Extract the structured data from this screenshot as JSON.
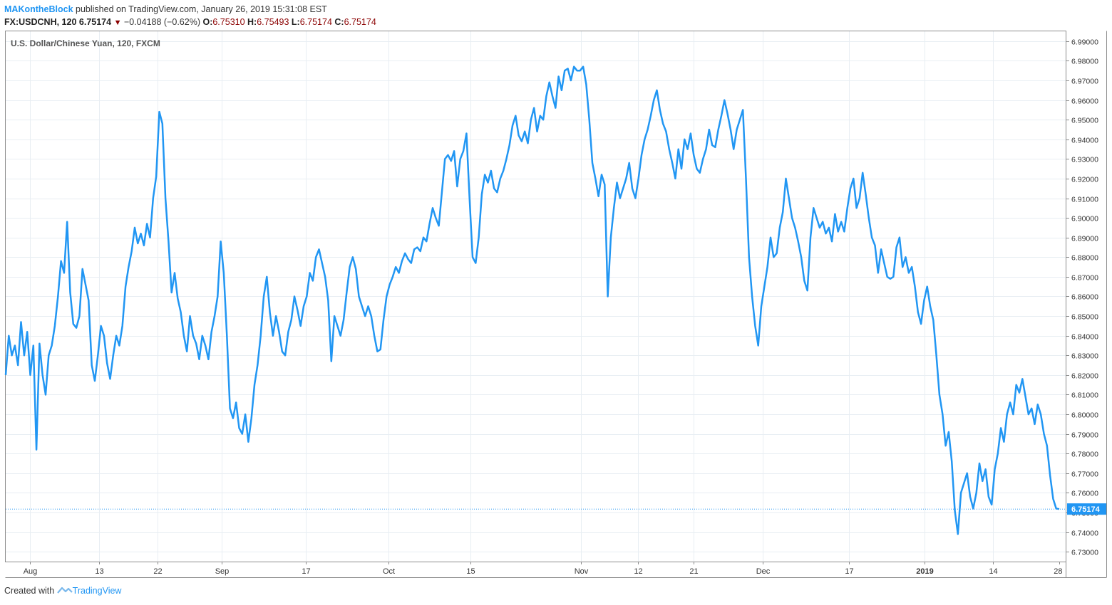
{
  "header": {
    "author": "MAKontheBlock",
    "published_text": "published on TradingView.com, January 26, 2019 15:31:08 EST",
    "symbol_interval": "FX:USDCNH, 120",
    "last": "6.75174",
    "change": "−0.04188 (−0.62%)",
    "o_label": "O:",
    "o_value": "6.75310",
    "h_label": "H:",
    "h_value": "6.75493",
    "l_label": "L:",
    "l_value": "6.75174",
    "c_label": "C:",
    "c_value": "6.75174"
  },
  "footer": {
    "created_with": "Created with",
    "brand": "TradingView"
  },
  "colors": {
    "line": "#2196f3",
    "grid": "#e8eef3",
    "down": "#8b0000"
  },
  "chart_data": {
    "type": "line",
    "title": "U.S. Dollar/Chinese Yuan, 120, FXCM",
    "ylim": [
      6.725,
      6.995
    ],
    "y_ticks": [
      "6.73000",
      "6.74000",
      "6.75000",
      "6.76000",
      "6.77000",
      "6.78000",
      "6.79000",
      "6.80000",
      "6.81000",
      "6.82000",
      "6.83000",
      "6.84000",
      "6.85000",
      "6.86000",
      "6.87000",
      "6.88000",
      "6.89000",
      "6.90000",
      "6.91000",
      "6.92000",
      "6.93000",
      "6.94000",
      "6.95000",
      "6.96000",
      "6.97000",
      "6.98000",
      "6.99000"
    ],
    "x_ticks": [
      {
        "label": "Aug",
        "pos": 0.0227
      },
      {
        "label": "13",
        "pos": 0.0887
      },
      {
        "label": "22",
        "pos": 0.1442
      },
      {
        "label": "Sep",
        "pos": 0.2052
      },
      {
        "label": "17",
        "pos": 0.2849
      },
      {
        "label": "Oct",
        "pos": 0.3635
      },
      {
        "label": "15",
        "pos": 0.4409
      },
      {
        "label": "Nov",
        "pos": 0.5462
      },
      {
        "label": "12",
        "pos": 0.6004
      },
      {
        "label": "21",
        "pos": 0.6532
      },
      {
        "label": "Dec",
        "pos": 0.7183
      },
      {
        "label": "17",
        "pos": 0.8006
      },
      {
        "label": "2019",
        "pos": 0.8719
      },
      {
        "label": "14",
        "pos": 0.9374
      },
      {
        "label": "28",
        "pos": 1.0
      }
    ],
    "last_price_label": "6.75174",
    "last_price": 6.75174,
    "series": [
      {
        "values": [
          6.82,
          6.84,
          6.83,
          6.835,
          6.825,
          6.847,
          6.83,
          6.842,
          6.82,
          6.835,
          6.782,
          6.836,
          6.82,
          6.81,
          6.83,
          6.835,
          6.845,
          6.86,
          6.878,
          6.872,
          6.898,
          6.862,
          6.846,
          6.844,
          6.85,
          6.874,
          6.866,
          6.858,
          6.825,
          6.817,
          6.83,
          6.845,
          6.84,
          6.826,
          6.818,
          6.83,
          6.84,
          6.835,
          6.845,
          6.865,
          6.875,
          6.883,
          6.895,
          6.887,
          6.892,
          6.886,
          6.897,
          6.89,
          6.91,
          6.921,
          6.954,
          6.948,
          6.91,
          6.888,
          6.862,
          6.872,
          6.859,
          6.852,
          6.84,
          6.832,
          6.85,
          6.84,
          6.836,
          6.828,
          6.84,
          6.835,
          6.828,
          6.842,
          6.85,
          6.86,
          6.888,
          6.872,
          6.84,
          6.803,
          6.798,
          6.806,
          6.793,
          6.79,
          6.8,
          6.786,
          6.798,
          6.815,
          6.825,
          6.84,
          6.86,
          6.87,
          6.852,
          6.84,
          6.85,
          6.842,
          6.832,
          6.83,
          6.842,
          6.848,
          6.86,
          6.853,
          6.845,
          6.855,
          6.86,
          6.872,
          6.868,
          6.88,
          6.884,
          6.877,
          6.87,
          6.858,
          6.827,
          6.85,
          6.845,
          6.84,
          6.848,
          6.862,
          6.875,
          6.88,
          6.874,
          6.86,
          6.855,
          6.85,
          6.855,
          6.85,
          6.84,
          6.832,
          6.833,
          6.848,
          6.86,
          6.866,
          6.87,
          6.875,
          6.872,
          6.878,
          6.882,
          6.879,
          6.877,
          6.884,
          6.885,
          6.883,
          6.89,
          6.888,
          6.897,
          6.905,
          6.9,
          6.896,
          6.913,
          6.93,
          6.932,
          6.929,
          6.934,
          6.916,
          6.93,
          6.934,
          6.943,
          6.91,
          6.88,
          6.877,
          6.89,
          6.912,
          6.922,
          6.918,
          6.924,
          6.915,
          6.913,
          6.92,
          6.924,
          6.93,
          6.937,
          6.947,
          6.952,
          6.942,
          6.939,
          6.944,
          6.938,
          6.95,
          6.956,
          6.944,
          6.952,
          6.95,
          6.962,
          6.969,
          6.962,
          6.956,
          6.972,
          6.965,
          6.975,
          6.976,
          6.97,
          6.977,
          6.975,
          6.975,
          6.977,
          6.968,
          6.95,
          6.928,
          6.92,
          6.911,
          6.922,
          6.917,
          6.86,
          6.89,
          6.905,
          6.918,
          6.91,
          6.915,
          6.92,
          6.928,
          6.915,
          6.91,
          6.92,
          6.932,
          6.94,
          6.945,
          6.952,
          6.96,
          6.965,
          6.955,
          6.948,
          6.944,
          6.935,
          6.928,
          6.92,
          6.935,
          6.925,
          6.94,
          6.935,
          6.943,
          6.932,
          6.925,
          6.923,
          6.93,
          6.935,
          6.945,
          6.937,
          6.936,
          6.945,
          6.952,
          6.96,
          6.953,
          6.945,
          6.935,
          6.945,
          6.95,
          6.955,
          6.92,
          6.88,
          6.86,
          6.845,
          6.835,
          6.855,
          6.865,
          6.875,
          6.89,
          6.88,
          6.882,
          6.895,
          6.903,
          6.92,
          6.91,
          6.9,
          6.895,
          6.888,
          6.88,
          6.868,
          6.863,
          6.89,
          6.905,
          6.9,
          6.895,
          6.898,
          6.892,
          6.895,
          6.888,
          6.902,
          6.893,
          6.898,
          6.893,
          6.905,
          6.915,
          6.92,
          6.905,
          6.91,
          6.923,
          6.912,
          6.9,
          6.89,
          6.886,
          6.872,
          6.884,
          6.877,
          6.87,
          6.869,
          6.87,
          6.885,
          6.89,
          6.875,
          6.88,
          6.872,
          6.875,
          6.865,
          6.852,
          6.846,
          6.858,
          6.865,
          6.855,
          6.848,
          6.83,
          6.81,
          6.8,
          6.784,
          6.791,
          6.776,
          6.751,
          6.739,
          6.76,
          6.765,
          6.77,
          6.758,
          6.752,
          6.76,
          6.775,
          6.766,
          6.772,
          6.758,
          6.754,
          6.772,
          6.78,
          6.793,
          6.786,
          6.8,
          6.806,
          6.8,
          6.815,
          6.811,
          6.818,
          6.809,
          6.8,
          6.803,
          6.795,
          6.805,
          6.8,
          6.79,
          6.784,
          6.769,
          6.757,
          6.752,
          6.75174
        ]
      }
    ]
  }
}
